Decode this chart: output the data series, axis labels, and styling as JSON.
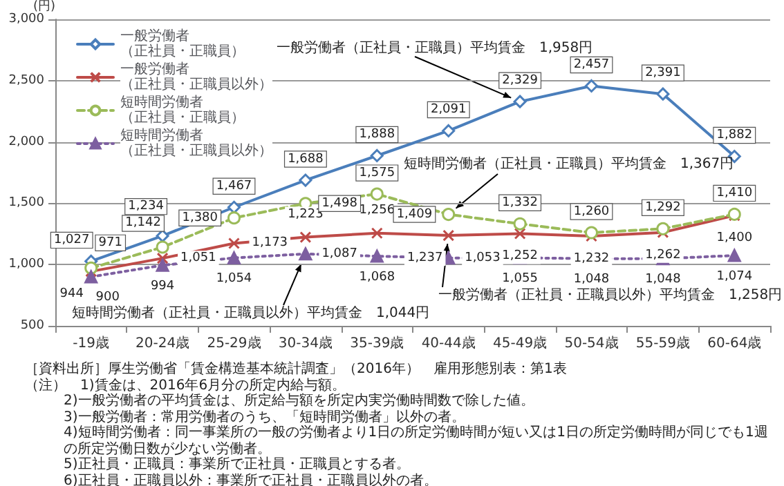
{
  "chart_data": {
    "type": "line",
    "ylabel": "(円)",
    "categories": [
      "-19歳",
      "20-24歳",
      "25-29歳",
      "30-34歳",
      "35-39歳",
      "40-44歳",
      "45-49歳",
      "50-54歳",
      "55-59歳",
      "60-64歳"
    ],
    "series": [
      {
        "name": "一般労働者（正社員・正職員）",
        "color": "#4a7ebb",
        "marker": "diamond",
        "line_style": "solid",
        "values": [
          1027,
          1234,
          1467,
          1688,
          1888,
          2091,
          2329,
          2457,
          2391,
          1882
        ],
        "value_labels": [
          "1,027",
          "1,234",
          "1,467",
          "1,688",
          "1,888",
          "2,091",
          "2,329",
          "2,457",
          "2,391",
          "1,882"
        ]
      },
      {
        "name": "一般労働者（正社員・正職員以外）",
        "color": "#be4b48",
        "marker": "cross",
        "line_style": "solid",
        "values": [
          944,
          1051,
          1173,
          1223,
          1256,
          1237,
          1252,
          1232,
          1262,
          1400
        ],
        "value_labels": [
          "944",
          "1,051",
          "1,173",
          "1,223",
          "1,256",
          "1,237",
          "1,252",
          "1,232",
          "1,262",
          "1,400"
        ]
      },
      {
        "name": "短時間労働者（正社員・正職員）",
        "color": "#9bbb59",
        "marker": "circle",
        "line_style": "dashed",
        "values": [
          971,
          1142,
          1380,
          1498,
          1575,
          1409,
          1332,
          1260,
          1292,
          1410
        ],
        "value_labels": [
          "971",
          "1,142",
          "1,380",
          "1,498",
          "1,575",
          "1,409",
          "1,332",
          "1,260",
          "1,292",
          "1,410"
        ]
      },
      {
        "name": "短時間労働者（正社員・正職員以外）",
        "color": "#7d5fa0",
        "marker": "triangle",
        "line_style": "dotted",
        "values": [
          900,
          994,
          1054,
          1087,
          1068,
          1053,
          1055,
          1048,
          1048,
          1074
        ],
        "value_labels": [
          "900",
          "994",
          "1,054",
          "1,087",
          "1,068",
          "1,053",
          "1,055",
          "1,048",
          "1,048",
          "1,074"
        ]
      }
    ],
    "ylim": [
      500,
      3000
    ],
    "yticks": [
      {
        "value": 500,
        "label": "500"
      },
      {
        "value": 1000,
        "label": "1,000"
      },
      {
        "value": 1500,
        "label": "1,500"
      },
      {
        "value": 2000,
        "label": "2,000"
      },
      {
        "value": 2500,
        "label": "2,500"
      },
      {
        "value": 3000,
        "label": "3,000"
      }
    ],
    "grid": "y",
    "legend": "top left",
    "annotations": [
      {
        "text": "一般労働者（正社員・正職員）平均賃金　1,958円",
        "x": "45-49歳",
        "y": 2329
      },
      {
        "text": "短時間労働者（正社員・正職員）平均賃金　1,367円",
        "x": "40-44歳",
        "y": 1409
      },
      {
        "text": "短時間労働者（正社員・正職員以外）平均賃金　1,044円",
        "x": "30-34歳",
        "y": 1087
      },
      {
        "text": "一般労働者（正社員・正職員以外）平均賃金　1,258円",
        "x": "40-44歳",
        "y": 1237
      },
      "［資料出所］厚生労働省「賃金構造基本統計調査」（2016年）　雇用形態別表：第1表",
      "（注）　1)賃金は、2016年6月分の所定内給与額。",
      "2)一般労働者の平均賃金は、所定給与額を所定内実労働時間数で除した値。",
      "3)一般労働者：常用労働者のうち、「短時間労働者」以外の者。",
      "4)短時間労働者：同一事業所の一般の労働者より1日の所定労働時間が短い又は1日の所定労働時間が同じでも1週の所定労働日数が少ない労働者。",
      "5)正社員・正職員：事業所で正社員・正職員とする者。",
      "6)正社員・正職員以外：事業所で正社員・正職員以外の者。"
    ]
  }
}
